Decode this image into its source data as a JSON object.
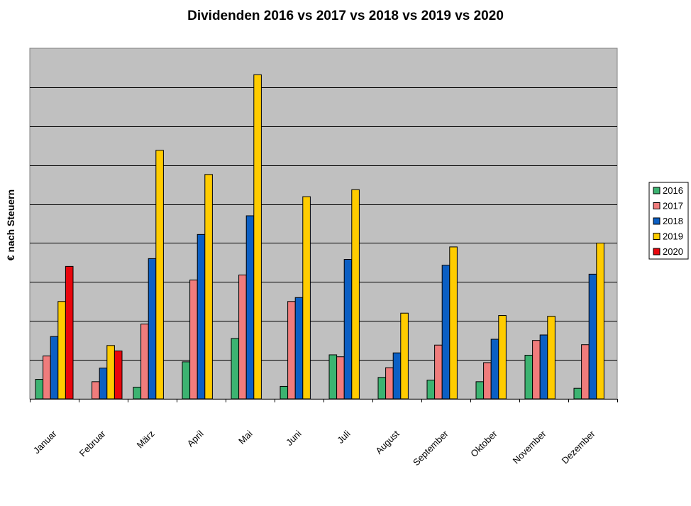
{
  "chart_data": {
    "type": "bar",
    "title": "Dividenden 2016 vs 2017 vs 2018 vs 2019 vs 2020",
    "xlabel": "",
    "ylabel": "€ nach Steuern",
    "ylim": [
      0,
      9
    ],
    "grid": true,
    "legend_position": "right",
    "categories": [
      "Januar",
      "Februar",
      "März",
      "April",
      "Mai",
      "Juni",
      "Juli",
      "August",
      "September",
      "Oktober",
      "November",
      "Dezember"
    ],
    "series": [
      {
        "name": "2016",
        "color": "#3cb371",
        "values": [
          0.5,
          0,
          0.3,
          0.95,
          1.55,
          0.32,
          1.13,
          0.55,
          0.48,
          0.44,
          1.12,
          0.27
        ]
      },
      {
        "name": "2017",
        "color": "#f07c7c",
        "values": [
          1.1,
          0.44,
          1.92,
          3.05,
          3.18,
          2.5,
          1.08,
          0.8,
          1.38,
          0.93,
          1.5,
          1.39
        ]
      },
      {
        "name": "2018",
        "color": "#0b5fc4",
        "values": [
          1.6,
          0.79,
          3.6,
          4.22,
          4.7,
          2.6,
          3.58,
          1.18,
          3.43,
          1.53,
          1.64,
          3.2
        ]
      },
      {
        "name": "2019",
        "color": "#ffcc00",
        "values": [
          2.5,
          1.37,
          6.38,
          5.76,
          8.32,
          5.19,
          5.37,
          2.2,
          3.9,
          2.14,
          2.12,
          4.0
        ]
      },
      {
        "name": "2020",
        "color": "#e8060d",
        "values": [
          3.4,
          1.23,
          0,
          0,
          0,
          0,
          0,
          0,
          0,
          0,
          0,
          0
        ]
      }
    ]
  }
}
